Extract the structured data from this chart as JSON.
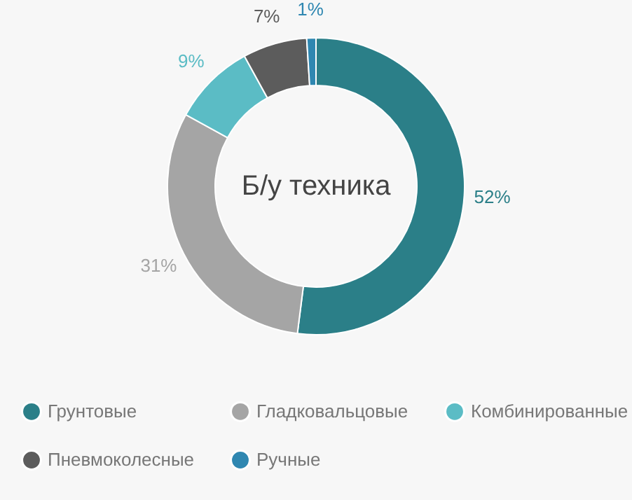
{
  "chart_data": {
    "type": "donut",
    "title": "Б/у техника",
    "categories": [
      "Грунтовые",
      "Гладковальцовые",
      "Комбинированные",
      "Пневмоколесные",
      "Ручные"
    ],
    "values": [
      52,
      31,
      9,
      7,
      1
    ],
    "colors": [
      "#2b7f88",
      "#a5a5a5",
      "#5bbcc5",
      "#5c5c5c",
      "#2f87b1"
    ],
    "value_labels": [
      "52%",
      "31%",
      "9%",
      "7%",
      "1%"
    ],
    "legend": "bottom"
  }
}
